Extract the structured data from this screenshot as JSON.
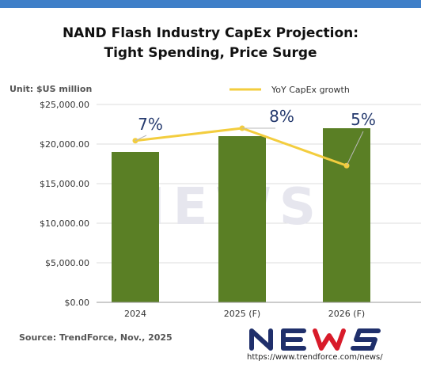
{
  "title_line1": "NAND Flash Industry CapEx Projection:",
  "title_line2": "Tight Spending, Price Surge",
  "unit_label": "Unit: $US million",
  "source": "Source: TrendForce, Nov., 2025",
  "logo_text": "NEWS",
  "logo_url": "https://www.trendforce.com/news/",
  "watermark_text": "NEWS",
  "colors": {
    "bar": "#5a7f25",
    "line": "#f3cd3e",
    "accent": "#3f7fc8",
    "logo": "#1f2f6b"
  },
  "chart_data": {
    "type": "bar",
    "title": "NAND Flash Industry CapEx Projection: Tight Spending, Price Surge",
    "categories": [
      "2024",
      "2025 (F)",
      "2026 (F)"
    ],
    "ylim": [
      0,
      25000
    ],
    "yticks": [
      0,
      5000,
      10000,
      15000,
      20000,
      25000
    ],
    "ytick_labels": [
      "$0.00",
      "$5,000.00",
      "$10,000.00",
      "$15,000.00",
      "$20,000.00",
      "$25,000.00"
    ],
    "grid": true,
    "legend_position": "top-right",
    "series": [
      {
        "type": "bar",
        "values": [
          19000,
          21000,
          22000
        ]
      },
      {
        "type": "line",
        "name": "YoY CapEx growth",
        "values": [
          7,
          8,
          5
        ],
        "labels": [
          "7%",
          "8%",
          "5%"
        ]
      }
    ]
  }
}
